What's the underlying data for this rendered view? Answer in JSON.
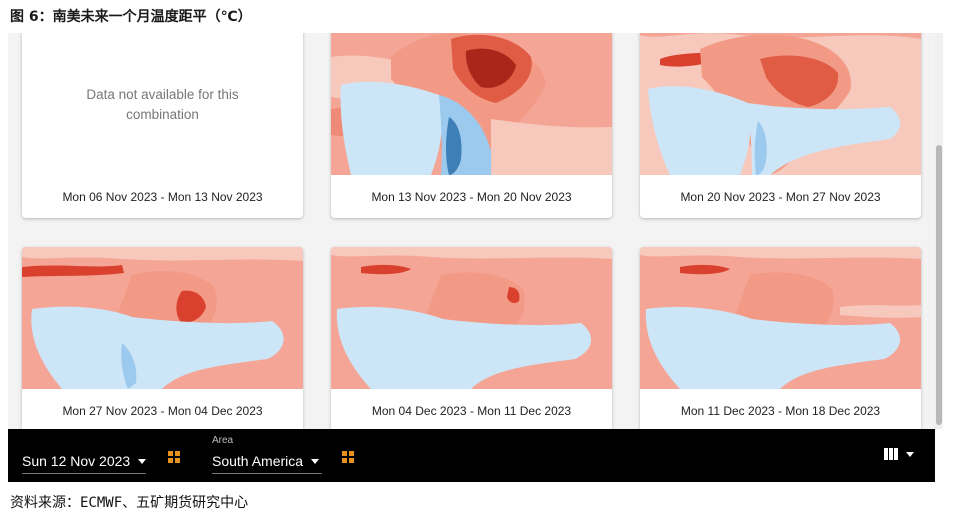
{
  "caption": "图 6：南美未来一个月温度距平（℃）",
  "cards": [
    {
      "label": "Mon 06 Nov 2023 - Mon 13 Nov 2023",
      "unavailable": true,
      "message": "Data not available for this combination"
    },
    {
      "label": "Mon 13 Nov 2023 - Mon 20 Nov 2023",
      "unavailable": false
    },
    {
      "label": "Mon 20 Nov 2023 - Mon 27 Nov 2023",
      "unavailable": false
    },
    {
      "label": "Mon 27 Nov 2023 - Mon 04 Dec 2023",
      "unavailable": false
    },
    {
      "label": "Mon 04 Dec 2023 - Mon 11 Dec 2023",
      "unavailable": false
    },
    {
      "label": "Mon 11 Dec 2023 - Mon 18 Dec 2023",
      "unavailable": false
    }
  ],
  "toolbar": {
    "date_value": "Sun 12 Nov 2023",
    "area_label": "Area",
    "area_value": "South America",
    "date_grid_icon": "grid-icon",
    "area_grid_icon": "grid-icon",
    "view_icon": "columns-icon"
  },
  "colors": {
    "accent": "#e8921c",
    "warm_light": "#f7c9bd",
    "warm": "#f08a78",
    "warm_strong": "#d9412e",
    "warm_extreme": "#8b1a10",
    "cool_light": "#cde6f7",
    "cool": "#9ccaee"
  },
  "source": "资料来源：ECMWF、五矿期货研究中心"
}
